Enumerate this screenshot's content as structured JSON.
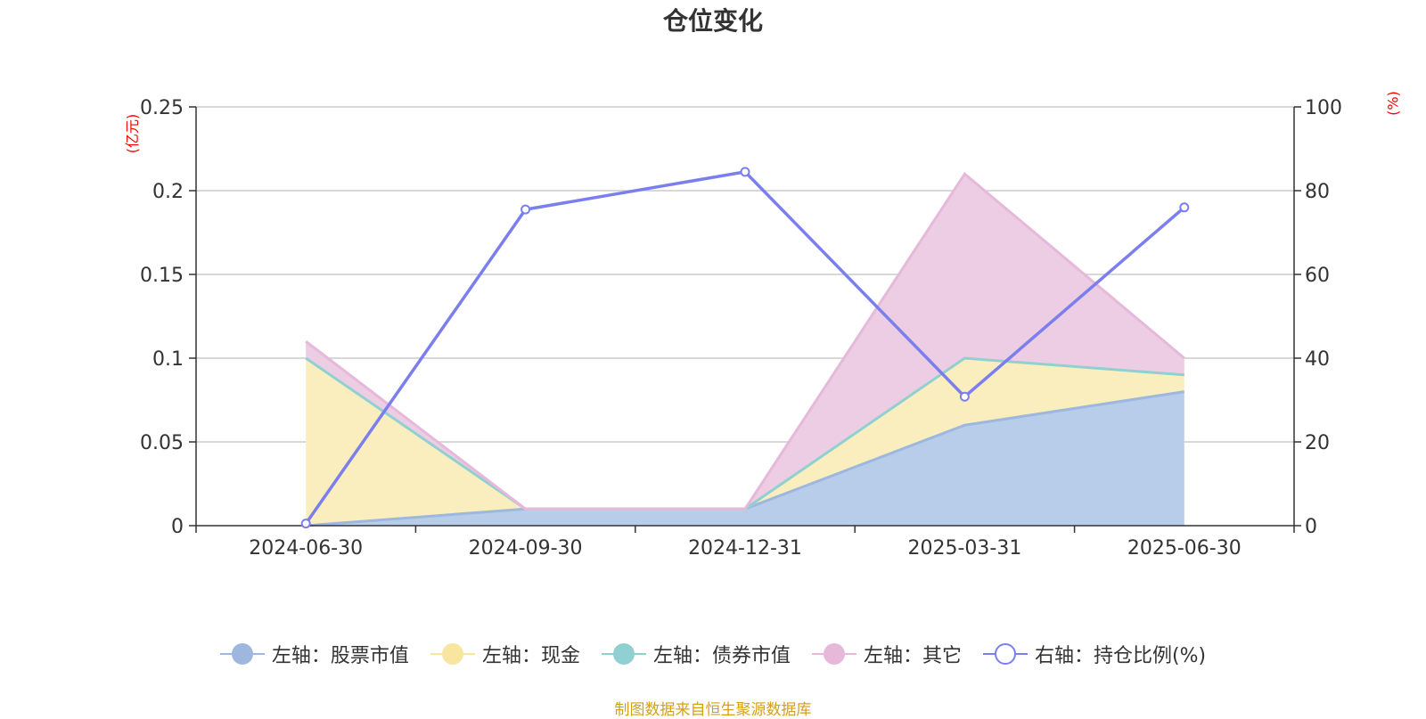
{
  "title": "仓位变化",
  "y_left_unit": "(亿元)",
  "y_right_unit": "(%)",
  "source": "制图数据来自恒生聚源数据库",
  "chart_data": {
    "type": "area",
    "title": "仓位变化",
    "categories": [
      "2024-06-30",
      "2024-09-30",
      "2024-12-31",
      "2025-03-31",
      "2025-06-30"
    ],
    "y_left": {
      "unit": "(亿元)",
      "ylim": [
        0,
        0.25
      ],
      "ticks": [
        "0",
        "0.05",
        "0.1",
        "0.15",
        "0.2",
        "0.25"
      ]
    },
    "y_right": {
      "unit": "(%)",
      "ylim": [
        0,
        100
      ],
      "ticks": [
        "0",
        "20",
        "40",
        "60",
        "80",
        "100"
      ]
    },
    "stacked": true,
    "grid": true,
    "legend_position": "bottom",
    "series": [
      {
        "name": "左轴：股票市值",
        "axis": "left",
        "type": "area",
        "color": "#9db7df",
        "fill": "#b8cdea",
        "values": [
          0,
          0.01,
          0.01,
          0.06,
          0.08
        ]
      },
      {
        "name": "左轴：现金",
        "axis": "left",
        "type": "area",
        "color": "#f8e6a0",
        "fill": "#faeebf",
        "values": [
          0.1,
          0,
          0,
          0.04,
          0.01
        ]
      },
      {
        "name": "左轴：债券市值",
        "axis": "left",
        "type": "area",
        "color": "#90d0d2",
        "fill": "#b8e2e3",
        "values": [
          0,
          0,
          0,
          0,
          0
        ]
      },
      {
        "name": "左轴：其它",
        "axis": "left",
        "type": "area",
        "color": "#e6b8da",
        "fill": "#eccde3",
        "values": [
          0.01,
          0,
          0,
          0.11,
          0.01
        ]
      },
      {
        "name": "右轴：持仓比例(%)",
        "axis": "right",
        "type": "line",
        "color": "#7b7fee",
        "values": [
          0.5,
          75.5,
          84.5,
          30.8,
          76
        ]
      }
    ]
  }
}
